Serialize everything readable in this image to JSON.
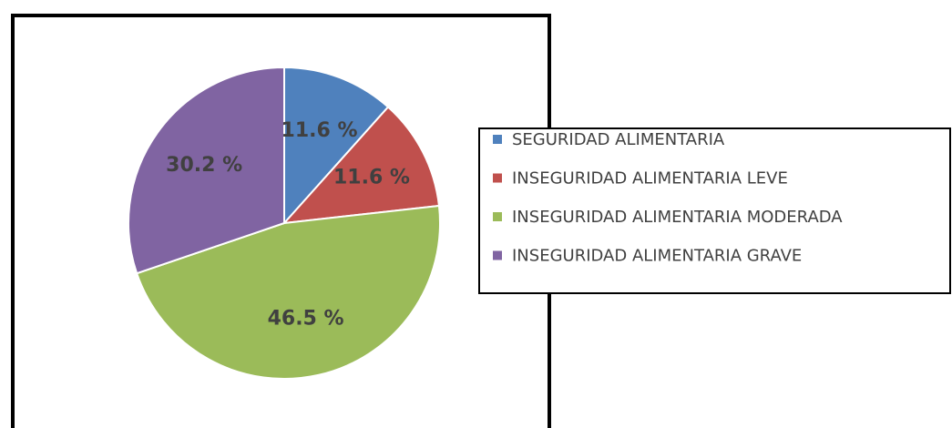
{
  "chart_data": {
    "type": "pie",
    "categories": [
      "SEGURIDAD ALIMENTARIA",
      "INSEGURIDAD ALIMENTARIA LEVE",
      "INSEGURIDAD ALIMENTARIA MODERADA",
      "INSEGURIDAD ALIMENTARIA GRAVE"
    ],
    "values": [
      11.6,
      11.6,
      46.5,
      30.2
    ],
    "value_labels": [
      "11.6 %",
      "11.6 %",
      "46.5 %",
      "30.2 %"
    ],
    "colors": [
      "#4f81bd",
      "#c0504d",
      "#9bbb59",
      "#8064a2"
    ],
    "legend": "right"
  }
}
